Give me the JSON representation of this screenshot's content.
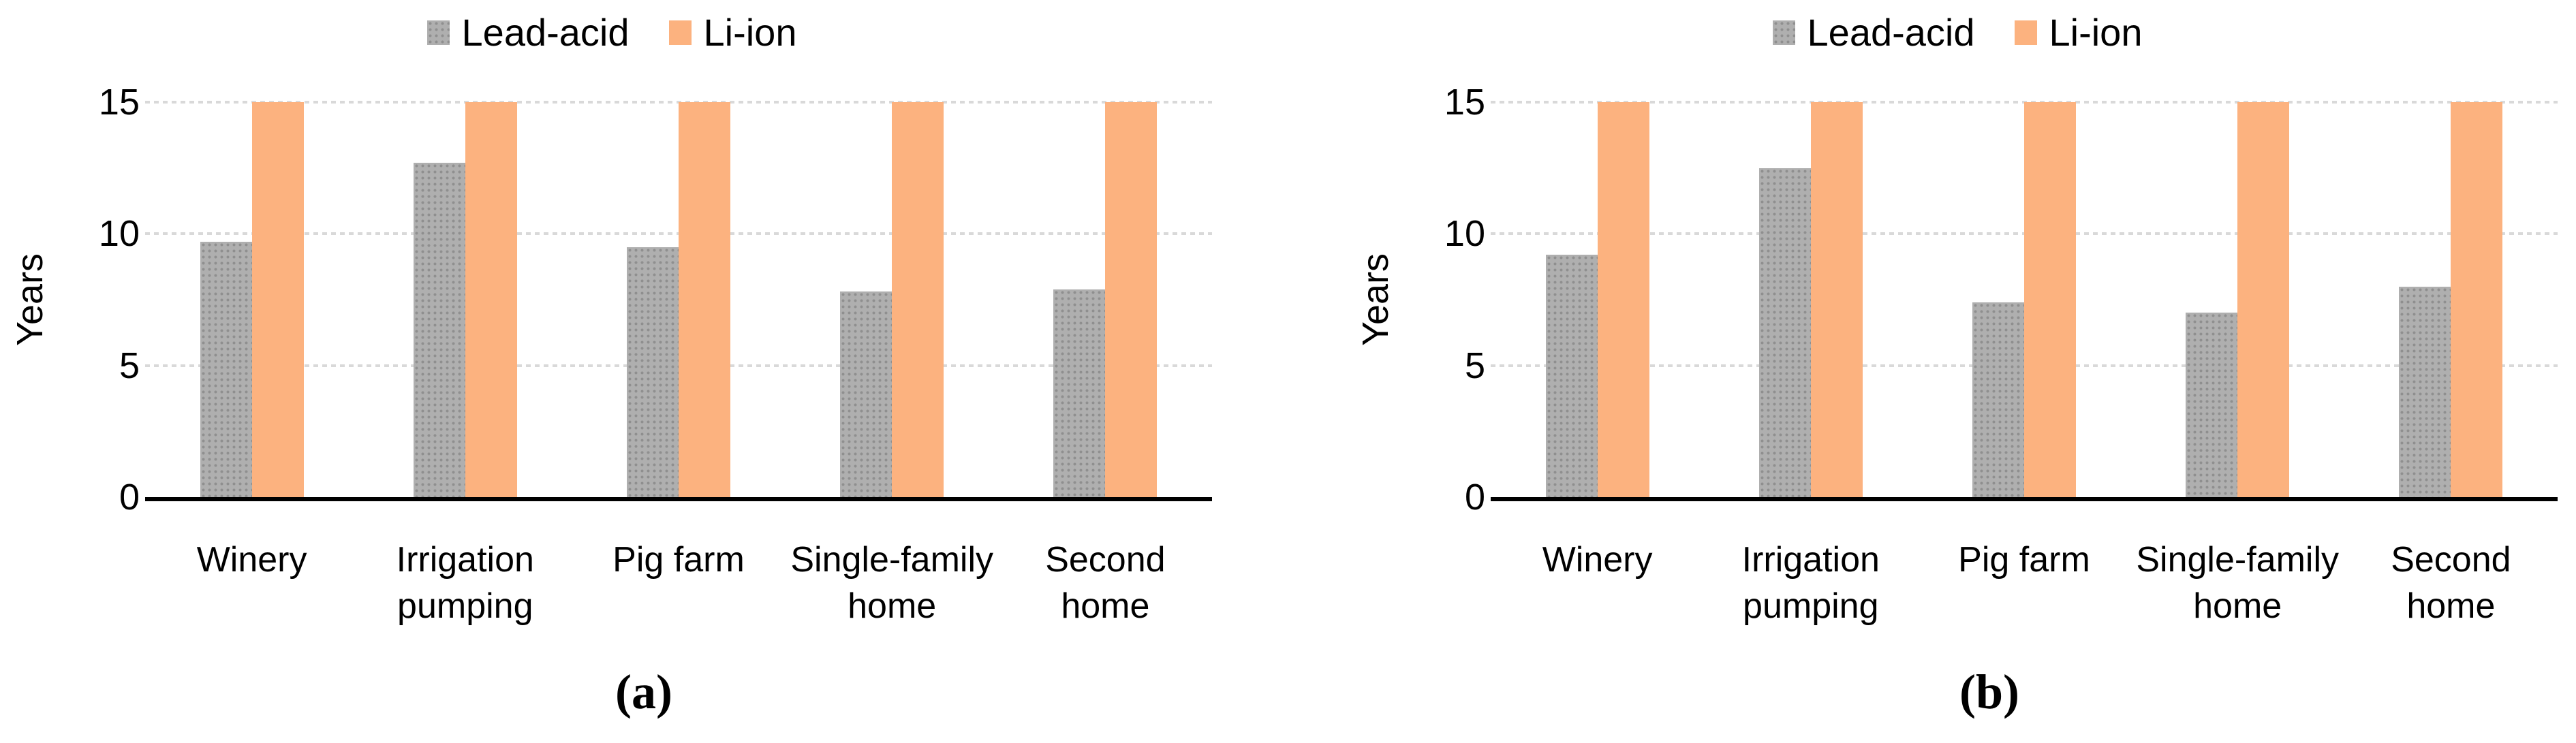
{
  "figure": {
    "background": "#ffffff",
    "text_color": "#000000",
    "axis_color": "#000000",
    "gridline_color": "#d9d9d9",
    "lead_acid_color": "#afafaf",
    "lead_acid_dot_color": "#8f8f8f",
    "li_ion_color": "#fcb27f"
  },
  "chart_data": [
    {
      "type": "bar",
      "caption": "(a)",
      "title": "",
      "categories": [
        "Winery",
        "Irrigation pumping",
        "Pig farm",
        "Single-family home",
        "Second home"
      ],
      "series": [
        {
          "name": "Lead-acid",
          "values": [
            9.7,
            12.7,
            9.5,
            7.8,
            7.9
          ],
          "color": "#afafaf",
          "pattern": true,
          "pattern_dot_color": "#8f8f8f"
        },
        {
          "name": "Li-ion",
          "values": [
            15,
            15,
            15,
            15,
            15
          ],
          "color": "#fcb27f",
          "pattern": false
        }
      ],
      "xlabel": "",
      "ylabel": "Years",
      "ylim": [
        0,
        15
      ],
      "yticks": [
        15,
        10,
        5,
        0
      ],
      "grid": true,
      "gridline_style": "dotted",
      "legend_position": "top"
    },
    {
      "type": "bar",
      "caption": "(b)",
      "title": "",
      "categories": [
        "Winery",
        "Irrigation pumping",
        "Pig farm",
        "Single-family home",
        "Second home"
      ],
      "series": [
        {
          "name": "Lead-acid",
          "values": [
            9.2,
            12.5,
            7.4,
            7.0,
            8.0
          ],
          "color": "#afafaf",
          "pattern": true,
          "pattern_dot_color": "#8f8f8f"
        },
        {
          "name": "Li-ion",
          "values": [
            15,
            15,
            15,
            15,
            15
          ],
          "color": "#fcb27f",
          "pattern": false
        }
      ],
      "xlabel": "",
      "ylabel": "Years",
      "ylim": [
        0,
        15
      ],
      "yticks": [
        15,
        10,
        5,
        0
      ],
      "grid": true,
      "gridline_style": "dotted",
      "legend_position": "top"
    }
  ]
}
